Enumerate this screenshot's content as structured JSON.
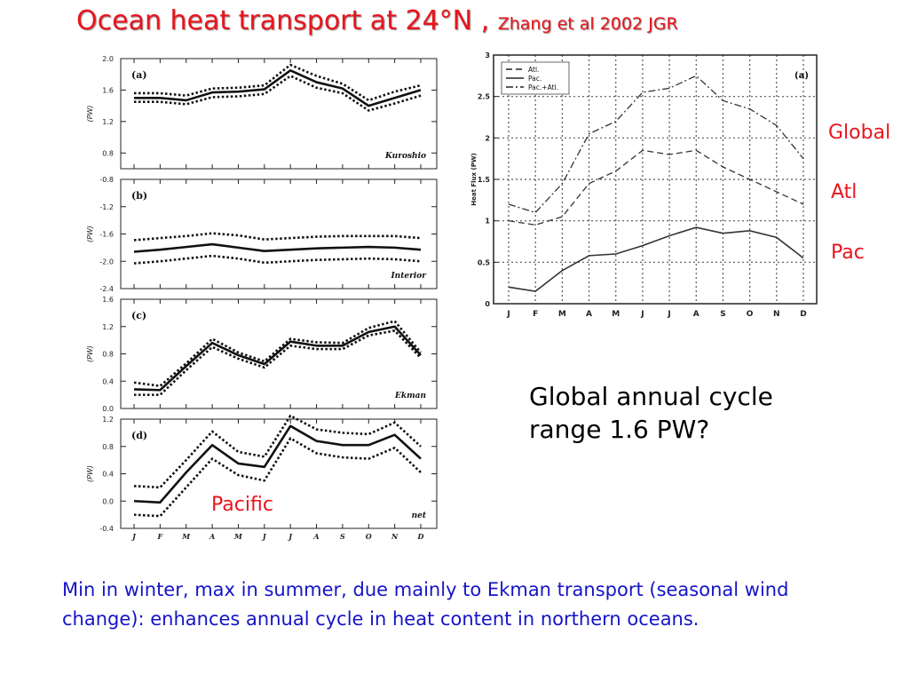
{
  "title": {
    "main": "Ocean heat transport at 24°N ,",
    "cite": "Zhang et al 2002 JGR"
  },
  "labels": {
    "global": "Global",
    "atl": "Atl",
    "pac": "Pac",
    "pacific": "Pacific"
  },
  "note": {
    "line1": "Global annual cycle",
    "line2": "range 1.6 PW?"
  },
  "caption": "Min in winter, max in summer, due mainly to Ekman transport (seasonal wind change): enhances annual cycle in heat content in northern oceans.",
  "colors": {
    "red": "#e8151d",
    "blue": "#1414c8",
    "line": "#111111",
    "grid": "#bbbbbb"
  },
  "chart_data": [
    {
      "type": "line",
      "panel": "(a)",
      "annotation": "Kuroshio",
      "ylabel": "(PW)",
      "ylim": [
        0.6,
        2.0
      ],
      "yticks": [
        "2.0",
        "1.6",
        "1.2",
        "0.8"
      ],
      "categories": [
        "J",
        "F",
        "M",
        "A",
        "M",
        "J",
        "J",
        "A",
        "S",
        "O",
        "N",
        "D"
      ],
      "series": [
        {
          "role": "mean",
          "values": [
            1.5,
            1.5,
            1.47,
            1.57,
            1.58,
            1.61,
            1.85,
            1.7,
            1.62,
            1.4,
            1.5,
            1.6
          ]
        },
        {
          "role": "upper",
          "values": [
            1.56,
            1.56,
            1.53,
            1.62,
            1.63,
            1.66,
            1.92,
            1.78,
            1.68,
            1.47,
            1.58,
            1.66
          ]
        },
        {
          "role": "lower",
          "values": [
            1.45,
            1.45,
            1.42,
            1.51,
            1.52,
            1.55,
            1.78,
            1.63,
            1.56,
            1.34,
            1.43,
            1.53
          ]
        }
      ]
    },
    {
      "type": "line",
      "panel": "(b)",
      "annotation": "Interior",
      "ylabel": "(PW)",
      "ylim": [
        -2.4,
        -0.8
      ],
      "yticks": [
        "-0.8",
        "-1.2",
        "-1.6",
        "-2.0",
        "-2.4"
      ],
      "categories": [
        "J",
        "F",
        "M",
        "A",
        "M",
        "J",
        "J",
        "A",
        "S",
        "O",
        "N",
        "D"
      ],
      "series": [
        {
          "role": "mean",
          "values": [
            -1.86,
            -1.83,
            -1.79,
            -1.75,
            -1.8,
            -1.85,
            -1.83,
            -1.81,
            -1.8,
            -1.79,
            -1.8,
            -1.83
          ]
        },
        {
          "role": "upper",
          "values": [
            -1.69,
            -1.66,
            -1.63,
            -1.59,
            -1.62,
            -1.68,
            -1.66,
            -1.64,
            -1.63,
            -1.63,
            -1.63,
            -1.66
          ]
        },
        {
          "role": "lower",
          "values": [
            -2.03,
            -2.0,
            -1.96,
            -1.92,
            -1.96,
            -2.02,
            -2.0,
            -1.98,
            -1.97,
            -1.96,
            -1.97,
            -2.0
          ]
        }
      ]
    },
    {
      "type": "line",
      "panel": "(c)",
      "annotation": "Ekman",
      "ylabel": "(PW)",
      "ylim": [
        0.0,
        1.6
      ],
      "yticks": [
        "1.6",
        "1.2",
        "0.8",
        "0.4",
        "0.0"
      ],
      "categories": [
        "J",
        "F",
        "M",
        "A",
        "M",
        "J",
        "J",
        "A",
        "S",
        "O",
        "N",
        "D"
      ],
      "series": [
        {
          "role": "mean",
          "values": [
            0.28,
            0.27,
            0.62,
            0.96,
            0.78,
            0.65,
            0.98,
            0.92,
            0.92,
            1.12,
            1.2,
            0.78
          ]
        },
        {
          "role": "upper",
          "values": [
            0.38,
            0.33,
            0.66,
            1.02,
            0.82,
            0.69,
            1.02,
            0.97,
            0.96,
            1.18,
            1.28,
            0.82
          ]
        },
        {
          "role": "lower",
          "values": [
            0.2,
            0.2,
            0.56,
            0.9,
            0.73,
            0.6,
            0.92,
            0.87,
            0.87,
            1.07,
            1.14,
            0.74
          ]
        }
      ]
    },
    {
      "type": "line",
      "panel": "(d)",
      "annotation": "net",
      "ylabel": "(PW)",
      "ylim": [
        -0.4,
        1.2
      ],
      "yticks": [
        "1.2",
        "0.8",
        "0.4",
        "0.0",
        "-0.4"
      ],
      "categories": [
        "J",
        "F",
        "M",
        "A",
        "M",
        "J",
        "J",
        "A",
        "S",
        "O",
        "N",
        "D"
      ],
      "series": [
        {
          "role": "mean",
          "values": [
            0.0,
            -0.02,
            0.42,
            0.82,
            0.55,
            0.5,
            1.1,
            0.88,
            0.82,
            0.82,
            0.97,
            0.62
          ]
        },
        {
          "role": "upper",
          "values": [
            0.22,
            0.2,
            0.6,
            1.02,
            0.72,
            0.65,
            1.25,
            1.05,
            1.0,
            0.98,
            1.15,
            0.8
          ]
        },
        {
          "role": "lower",
          "values": [
            -0.2,
            -0.22,
            0.2,
            0.62,
            0.38,
            0.3,
            0.92,
            0.7,
            0.64,
            0.62,
            0.78,
            0.42
          ]
        }
      ]
    },
    {
      "type": "line",
      "panel": "(a)",
      "ylabel": "Heat Flux (PW)",
      "ylim": [
        0,
        3
      ],
      "yticks": [
        "3",
        "2.5",
        "2",
        "1.5",
        "1",
        "0.5",
        "0"
      ],
      "categories": [
        "J",
        "F",
        "M",
        "A",
        "M",
        "J",
        "J",
        "A",
        "S",
        "O",
        "N",
        "D"
      ],
      "grid": true,
      "legend": "top-left",
      "series": [
        {
          "name": "Atl.",
          "style": "dashed",
          "values": [
            1.0,
            0.95,
            1.05,
            1.45,
            1.6,
            1.85,
            1.8,
            1.85,
            1.65,
            1.5,
            1.35,
            1.2
          ]
        },
        {
          "name": "Pac.",
          "style": "solid",
          "values": [
            0.2,
            0.15,
            0.4,
            0.58,
            0.6,
            0.7,
            0.82,
            0.92,
            0.85,
            0.88,
            0.8,
            0.55
          ]
        },
        {
          "name": "Pac.+Atl.",
          "style": "dashdot",
          "values": [
            1.2,
            1.1,
            1.45,
            2.05,
            2.2,
            2.55,
            2.6,
            2.75,
            2.45,
            2.35,
            2.15,
            1.75
          ]
        }
      ]
    }
  ]
}
